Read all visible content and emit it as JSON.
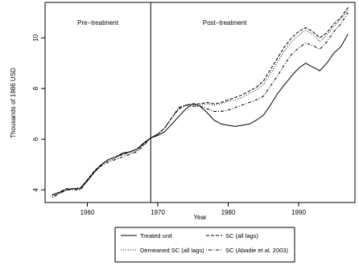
{
  "chart_data": {
    "type": "line",
    "title": "",
    "xlabel": "Year",
    "ylabel": "Thousands of 1986 USD",
    "xlim": [
      1954,
      1998
    ],
    "ylim": [
      3.5,
      11.4
    ],
    "x_ticks": [
      1960,
      1970,
      1980,
      1990
    ],
    "y_ticks": [
      4,
      6,
      8,
      10
    ],
    "grid": false,
    "legend_position": "bottom-center",
    "treatment_year": 1969,
    "annotations": [
      {
        "text": "Pre−treatment",
        "x": 1961.5,
        "y": 10.6
      },
      {
        "text": "Post−treatment",
        "x": 1979.5,
        "y": 10.6
      }
    ],
    "series": [
      {
        "name": "Treated unit",
        "dash": "solid",
        "x": [
          1955,
          1956,
          1957,
          1958,
          1959,
          1960,
          1961,
          1962,
          1963,
          1964,
          1965,
          1966,
          1967,
          1968,
          1969,
          1970,
          1971,
          1972,
          1973,
          1974,
          1975,
          1976,
          1977,
          1978,
          1979,
          1980,
          1981,
          1982,
          1983,
          1984,
          1985,
          1986,
          1987,
          1988,
          1989,
          1990,
          1991,
          1992,
          1993,
          1994,
          1995,
          1996,
          1997
        ],
        "values": [
          3.8,
          3.9,
          4.0,
          4.05,
          4.05,
          4.35,
          4.7,
          5.0,
          5.2,
          5.3,
          5.45,
          5.5,
          5.6,
          5.85,
          6.05,
          6.15,
          6.3,
          6.6,
          6.9,
          7.2,
          7.4,
          7.3,
          7.05,
          6.75,
          6.6,
          6.55,
          6.5,
          6.55,
          6.6,
          6.75,
          6.95,
          7.35,
          7.8,
          8.15,
          8.5,
          8.8,
          9.0,
          8.85,
          8.7,
          9.0,
          9.4,
          9.65,
          10.15
        ]
      },
      {
        "name": "Demeaned SC (all lags)",
        "dash": "dotted",
        "x": [
          1955,
          1956,
          1957,
          1958,
          1959,
          1960,
          1961,
          1962,
          1963,
          1964,
          1965,
          1966,
          1967,
          1968,
          1969,
          1970,
          1971,
          1972,
          1973,
          1974,
          1975,
          1976,
          1977,
          1978,
          1979,
          1980,
          1981,
          1982,
          1983,
          1984,
          1985,
          1986,
          1987,
          1988,
          1989,
          1990,
          1991,
          1992,
          1993,
          1994,
          1995,
          1996,
          1997
        ],
        "values": [
          3.75,
          3.85,
          4.0,
          4.05,
          4.1,
          4.4,
          4.75,
          5.0,
          5.15,
          5.25,
          5.4,
          5.45,
          5.55,
          5.8,
          6.05,
          6.2,
          6.45,
          6.85,
          7.2,
          7.35,
          7.35,
          7.35,
          7.4,
          7.35,
          7.4,
          7.5,
          7.55,
          7.65,
          7.8,
          7.95,
          8.15,
          8.6,
          9.05,
          9.5,
          9.85,
          10.1,
          10.3,
          10.15,
          9.85,
          10.1,
          10.45,
          10.75,
          11.1
        ]
      },
      {
        "name": "SC (all lags)",
        "dash": "dashed",
        "x": [
          1955,
          1956,
          1957,
          1958,
          1959,
          1960,
          1961,
          1962,
          1963,
          1964,
          1965,
          1966,
          1967,
          1968,
          1969,
          1970,
          1971,
          1972,
          1973,
          1974,
          1975,
          1976,
          1977,
          1978,
          1979,
          1980,
          1981,
          1982,
          1983,
          1984,
          1985,
          1986,
          1987,
          1988,
          1989,
          1990,
          1991,
          1992,
          1993,
          1994,
          1995,
          1996,
          1997
        ],
        "values": [
          3.8,
          3.9,
          4.05,
          4.05,
          4.05,
          4.4,
          4.75,
          5.0,
          5.2,
          5.3,
          5.4,
          5.5,
          5.6,
          5.8,
          6.05,
          6.2,
          6.45,
          6.85,
          7.2,
          7.35,
          7.4,
          7.4,
          7.45,
          7.4,
          7.45,
          7.55,
          7.65,
          7.75,
          7.9,
          8.05,
          8.3,
          8.75,
          9.2,
          9.65,
          10.0,
          10.25,
          10.4,
          10.25,
          10.0,
          10.2,
          10.55,
          10.8,
          11.2
        ]
      },
      {
        "name": "SC (Abadie et al. 2003)",
        "dash": "dotdash",
        "x": [
          1955,
          1956,
          1957,
          1958,
          1959,
          1960,
          1961,
          1962,
          1963,
          1964,
          1965,
          1966,
          1967,
          1968,
          1969,
          1970,
          1971,
          1972,
          1973,
          1974,
          1975,
          1976,
          1977,
          1978,
          1979,
          1980,
          1981,
          1982,
          1983,
          1984,
          1985,
          1986,
          1987,
          1988,
          1989,
          1990,
          1991,
          1992,
          1993,
          1994,
          1995,
          1996,
          1997
        ],
        "values": [
          3.7,
          3.85,
          4.0,
          4.0,
          4.0,
          4.35,
          4.7,
          4.95,
          5.1,
          5.2,
          5.3,
          5.4,
          5.5,
          5.75,
          6.05,
          6.2,
          6.45,
          6.85,
          7.25,
          7.35,
          7.3,
          7.3,
          7.2,
          7.1,
          7.1,
          7.15,
          7.25,
          7.35,
          7.45,
          7.55,
          7.7,
          8.1,
          8.5,
          8.95,
          9.35,
          9.6,
          9.8,
          9.7,
          9.55,
          9.85,
          10.25,
          10.55,
          11.0
        ]
      }
    ]
  }
}
